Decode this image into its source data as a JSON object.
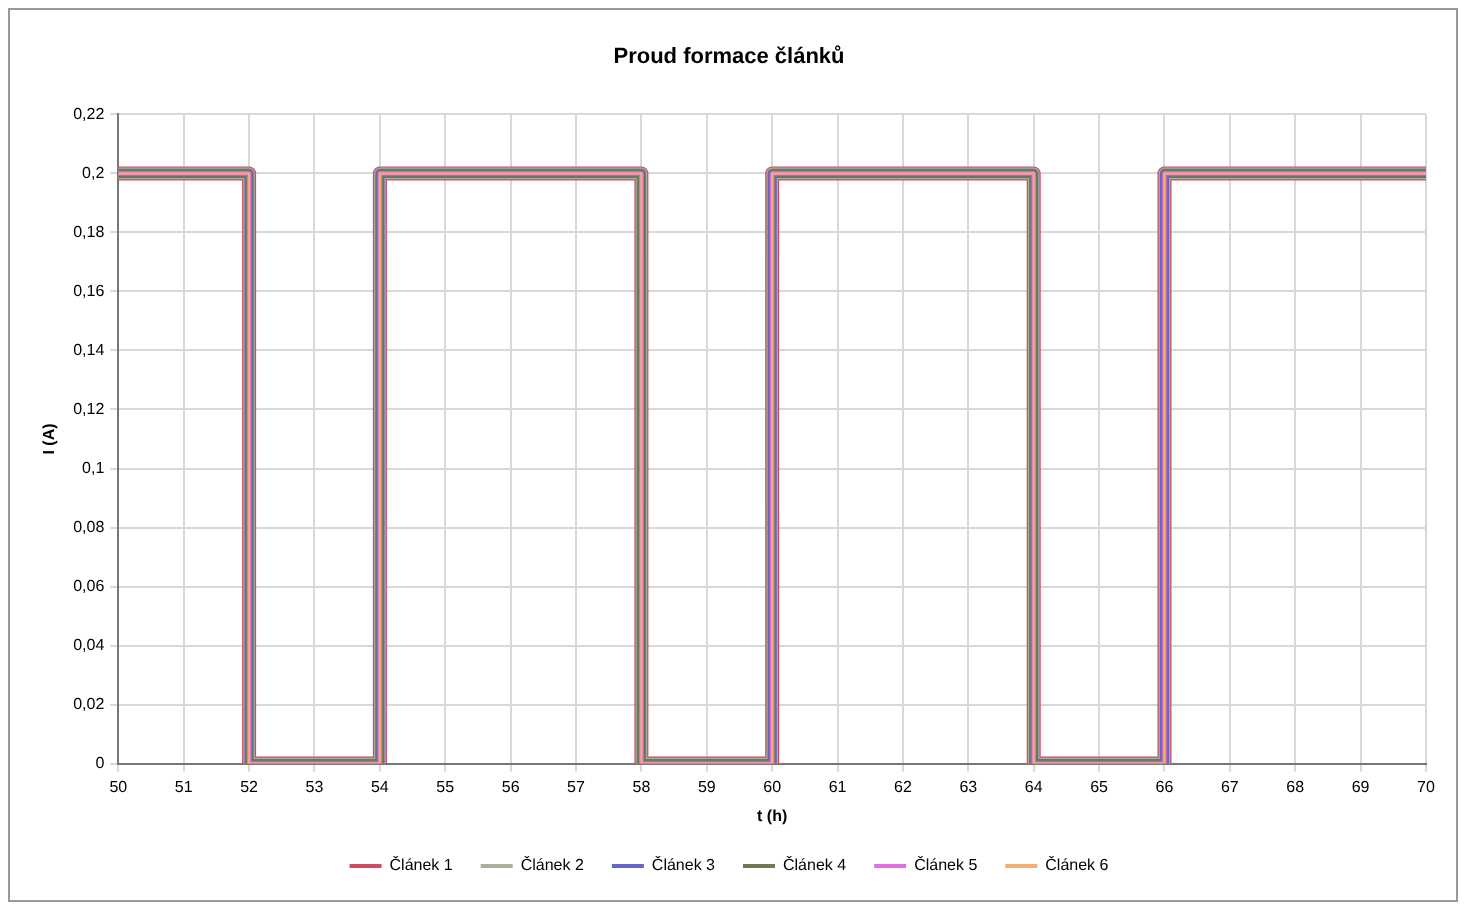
{
  "chart_data": {
    "type": "line",
    "title": "Proud formace článků",
    "xlabel": "t (h)",
    "ylabel": "I (A)",
    "x": [
      50,
      52,
      52,
      54,
      54,
      58,
      58,
      60,
      60,
      64,
      64,
      66,
      66,
      70
    ],
    "series": [
      {
        "name": "Článek 1",
        "color": "#d04a60",
        "values": [
          0.2,
          0.2,
          0,
          0,
          0.2,
          0.2,
          0,
          0,
          0.2,
          0.2,
          0,
          0,
          0.2,
          0.2
        ]
      },
      {
        "name": "Článek 2",
        "color": "#a8b098",
        "values": [
          0.2,
          0.2,
          0,
          0,
          0.2,
          0.2,
          0,
          0,
          0.2,
          0.2,
          0,
          0,
          0.2,
          0.2
        ]
      },
      {
        "name": "Článek 3",
        "color": "#6666c8",
        "values": [
          0.2,
          0.2,
          0,
          0,
          0.2,
          0.2,
          0,
          0,
          0.2,
          0.2,
          0,
          0,
          0.2,
          0.2
        ]
      },
      {
        "name": "Článek 4",
        "color": "#6f7a52",
        "values": [
          0.2,
          0.2,
          0,
          0,
          0.2,
          0.2,
          0,
          0,
          0.2,
          0.2,
          0,
          0,
          0.2,
          0.2
        ]
      },
      {
        "name": "Článek 5",
        "color": "#e070e0",
        "values": [
          0.2,
          0.2,
          0,
          0,
          0.2,
          0.2,
          0,
          0,
          0.2,
          0.2,
          0,
          0,
          0.2,
          0.2
        ]
      },
      {
        "name": "Článek 6",
        "color": "#f0b070",
        "values": [
          0.2,
          0.2,
          0,
          0,
          0.2,
          0.2,
          0,
          0,
          0.2,
          0.2,
          0,
          0,
          0.2,
          0.2
        ]
      }
    ],
    "xlim": [
      50,
      70
    ],
    "xticks": [
      50,
      51,
      52,
      53,
      54,
      55,
      56,
      57,
      58,
      59,
      60,
      61,
      62,
      63,
      64,
      65,
      66,
      67,
      68,
      69,
      70
    ],
    "ylim": [
      0,
      0.22
    ],
    "yticks": [
      0,
      {
        "value": 0.02,
        "label": "0,02"
      },
      {
        "value": 0.04,
        "label": "0,04"
      },
      {
        "value": 0.06,
        "label": "0,06"
      },
      {
        "value": 0.08,
        "label": "0,08"
      },
      {
        "value": 0.1,
        "label": "0,1"
      },
      {
        "value": 0.12,
        "label": "0,12"
      },
      {
        "value": 0.14,
        "label": "0,14"
      },
      {
        "value": 0.16,
        "label": "0,16"
      },
      {
        "value": 0.18,
        "label": "0,18"
      },
      {
        "value": 0.2,
        "label": "0,2"
      },
      {
        "value": 0.22,
        "label": "0,22"
      }
    ],
    "grid": true,
    "legend": "bottom",
    "marker": "none",
    "line_style": "solid"
  }
}
